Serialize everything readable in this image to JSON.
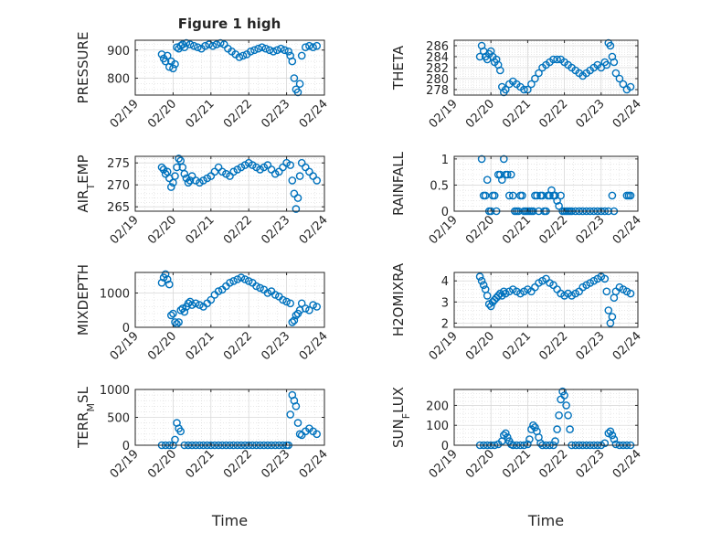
{
  "figure": {
    "title": "Figure 1 high",
    "marker_color": "#0072BD",
    "axis_color": "#262626",
    "grid_color": "#d9d9d9"
  },
  "chart_data": [
    {
      "type": "scatter",
      "title": "Figure 1 high",
      "xlabel": "",
      "ylabel": "PRESSURE",
      "xlim": [
        0,
        5
      ],
      "ylim": [
        740,
        935
      ],
      "grid": "on",
      "xticks": [
        0,
        1,
        2,
        3,
        4,
        5
      ],
      "xtick_labels": [
        "02/19",
        "02/20",
        "02/21",
        "02/22",
        "02/23",
        "02/24"
      ],
      "yticks": [
        800,
        900
      ],
      "ytick_labels": [
        "800",
        "900"
      ],
      "x": [
        0.7,
        0.75,
        0.8,
        0.85,
        0.9,
        0.95,
        1.0,
        1.05,
        1.1,
        1.15,
        1.2,
        1.25,
        1.3,
        1.35,
        1.45,
        1.55,
        1.65,
        1.75,
        1.85,
        1.95,
        2.05,
        2.15,
        2.25,
        2.35,
        2.45,
        2.55,
        2.65,
        2.75,
        2.85,
        2.95,
        3.05,
        3.15,
        3.25,
        3.35,
        3.45,
        3.55,
        3.65,
        3.75,
        3.85,
        3.95,
        4.05,
        4.1,
        4.15,
        4.2,
        4.25,
        4.3,
        4.35,
        4.4,
        4.5,
        4.6,
        4.7,
        4.8
      ],
      "y": [
        885,
        870,
        860,
        880,
        840,
        860,
        835,
        850,
        910,
        905,
        915,
        920,
        910,
        925,
        920,
        915,
        910,
        905,
        915,
        920,
        915,
        920,
        925,
        920,
        905,
        895,
        885,
        875,
        880,
        885,
        895,
        900,
        905,
        910,
        905,
        900,
        895,
        900,
        905,
        900,
        895,
        880,
        860,
        800,
        760,
        750,
        780,
        880,
        910,
        915,
        910,
        915
      ]
    },
    {
      "type": "scatter",
      "title": "",
      "xlabel": "",
      "ylabel": "THETA",
      "xlim": [
        0,
        5
      ],
      "ylim": [
        277,
        287
      ],
      "grid": "on",
      "xticks": [
        0,
        1,
        2,
        3,
        4,
        5
      ],
      "xtick_labels": [
        "02/19",
        "02/20",
        "02/21",
        "02/22",
        "02/23",
        "02/24"
      ],
      "yticks": [
        278,
        280,
        282,
        284,
        286
      ],
      "ytick_labels": [
        "278",
        "280",
        "282",
        "284",
        "286"
      ],
      "x": [
        0.7,
        0.75,
        0.8,
        0.85,
        0.9,
        0.95,
        1.0,
        1.05,
        1.1,
        1.15,
        1.2,
        1.25,
        1.3,
        1.35,
        1.4,
        1.5,
        1.6,
        1.7,
        1.8,
        1.9,
        2.0,
        2.1,
        2.2,
        2.3,
        2.4,
        2.5,
        2.6,
        2.7,
        2.8,
        2.9,
        3.0,
        3.1,
        3.2,
        3.3,
        3.4,
        3.5,
        3.6,
        3.7,
        3.8,
        3.9,
        4.0,
        4.1,
        4.15,
        4.2,
        4.25,
        4.3,
        4.35,
        4.4,
        4.5,
        4.6,
        4.7,
        4.8
      ],
      "y": [
        284,
        286,
        285,
        284,
        283.5,
        284.5,
        285,
        284,
        283,
        283.5,
        282.5,
        281.5,
        278.5,
        277.5,
        278,
        279,
        279.5,
        279,
        278.5,
        278,
        278,
        279,
        280,
        281,
        282,
        282.5,
        283,
        283.5,
        283.5,
        283.5,
        283,
        282.5,
        282,
        281.5,
        281,
        280.5,
        281,
        281.5,
        282,
        282.5,
        282,
        283,
        282.5,
        286.5,
        286,
        284,
        283,
        281,
        280,
        279,
        278,
        278.5
      ]
    },
    {
      "type": "scatter",
      "title": "",
      "xlabel": "",
      "ylabel": "AIR_TEMP",
      "xlim": [
        0,
        5
      ],
      "ylim": [
        264,
        276.5
      ],
      "grid": "on",
      "xticks": [
        0,
        1,
        2,
        3,
        4,
        5
      ],
      "xtick_labels": [
        "02/19",
        "02/20",
        "02/21",
        "02/22",
        "02/23",
        "02/24"
      ],
      "yticks": [
        265,
        270,
        275
      ],
      "ytick_labels": [
        "265",
        "270",
        "275"
      ],
      "x": [
        0.7,
        0.75,
        0.8,
        0.85,
        0.9,
        0.95,
        1.0,
        1.05,
        1.1,
        1.15,
        1.2,
        1.25,
        1.3,
        1.35,
        1.4,
        1.45,
        1.5,
        1.6,
        1.7,
        1.8,
        1.9,
        2.0,
        2.1,
        2.2,
        2.3,
        2.4,
        2.5,
        2.6,
        2.7,
        2.8,
        2.9,
        3.0,
        3.1,
        3.2,
        3.3,
        3.4,
        3.5,
        3.6,
        3.7,
        3.8,
        3.9,
        4.0,
        4.1,
        4.15,
        4.2,
        4.25,
        4.3,
        4.35,
        4.4,
        4.5,
        4.6,
        4.7,
        4.8
      ],
      "y": [
        274,
        273.5,
        272.5,
        273,
        271.5,
        269.5,
        270.5,
        272,
        274,
        276,
        275.5,
        274,
        272.5,
        271.5,
        270.5,
        271,
        272,
        271,
        270.5,
        271,
        271.5,
        272,
        273,
        274,
        273,
        272.5,
        272,
        273,
        273.5,
        274,
        274.5,
        275,
        274.5,
        274,
        273.5,
        274,
        274.5,
        273.5,
        272.5,
        273,
        274,
        275,
        274.5,
        271,
        268,
        264.5,
        267,
        272,
        275,
        274,
        273,
        272,
        271
      ]
    },
    {
      "type": "scatter",
      "title": "",
      "xlabel": "",
      "ylabel": "RAINFALL",
      "xlim": [
        0,
        5
      ],
      "ylim": [
        0,
        1.05
      ],
      "grid": "on",
      "xticks": [
        0,
        1,
        2,
        3,
        4,
        5
      ],
      "xtick_labels": [
        "02/19",
        "02/20",
        "02/21",
        "02/22",
        "02/23",
        "02/24"
      ],
      "yticks": [
        0,
        0.5,
        1
      ],
      "ytick_labels": [
        "0",
        "0.5",
        "1"
      ],
      "x": [
        0.75,
        0.8,
        0.85,
        0.9,
        0.95,
        1.0,
        1.05,
        1.1,
        1.15,
        1.2,
        1.25,
        1.3,
        1.35,
        1.4,
        1.45,
        1.5,
        1.55,
        1.6,
        1.65,
        1.7,
        1.75,
        1.8,
        1.85,
        1.9,
        1.95,
        2.0,
        2.05,
        2.1,
        2.15,
        2.2,
        2.25,
        2.3,
        2.35,
        2.4,
        2.45,
        2.5,
        2.55,
        2.6,
        2.65,
        2.7,
        2.75,
        2.8,
        2.85,
        2.9,
        2.95,
        3.0,
        3.05,
        3.1,
        3.15,
        3.2,
        3.3,
        3.4,
        3.5,
        3.6,
        3.7,
        3.8,
        3.9,
        4.0,
        4.1,
        4.2,
        4.3,
        4.35,
        4.7,
        4.75,
        4.8
      ],
      "y": [
        1,
        0.3,
        0.3,
        0.6,
        0,
        0,
        0.3,
        0.3,
        0,
        0.7,
        0.7,
        0.6,
        1,
        0.7,
        0.7,
        0.3,
        0.7,
        0.3,
        0,
        0,
        0,
        0.3,
        0.3,
        0,
        0,
        0,
        0,
        0,
        0,
        0.3,
        0.3,
        0,
        0.3,
        0.3,
        0,
        0,
        0.3,
        0.3,
        0.4,
        0.3,
        0.3,
        0.2,
        0.1,
        0.3,
        0,
        0,
        0,
        0,
        0,
        0,
        0,
        0,
        0,
        0,
        0,
        0,
        0,
        0,
        0,
        0,
        0.3,
        0,
        0.3,
        0.3,
        0.3
      ]
    },
    {
      "type": "scatter",
      "title": "",
      "xlabel": "",
      "ylabel": "MIXDEPTH",
      "xlim": [
        0,
        5
      ],
      "ylim": [
        0,
        1600
      ],
      "grid": "on",
      "xticks": [
        0,
        1,
        2,
        3,
        4,
        5
      ],
      "xtick_labels": [
        "02/19",
        "02/20",
        "02/21",
        "02/22",
        "02/23",
        "02/24"
      ],
      "yticks": [
        0,
        1000
      ],
      "ytick_labels": [
        "0",
        "1000"
      ],
      "x": [
        0.7,
        0.75,
        0.8,
        0.85,
        0.9,
        0.95,
        1.0,
        1.05,
        1.1,
        1.15,
        1.2,
        1.25,
        1.3,
        1.35,
        1.4,
        1.45,
        1.5,
        1.6,
        1.7,
        1.8,
        1.9,
        2.0,
        2.1,
        2.2,
        2.3,
        2.4,
        2.5,
        2.6,
        2.7,
        2.8,
        2.9,
        3.0,
        3.1,
        3.2,
        3.3,
        3.4,
        3.5,
        3.6,
        3.7,
        3.8,
        3.9,
        4.0,
        4.1,
        4.15,
        4.2,
        4.25,
        4.3,
        4.35,
        4.4,
        4.5,
        4.6,
        4.7,
        4.8
      ],
      "y": [
        1300,
        1450,
        1550,
        1400,
        1250,
        350,
        400,
        150,
        100,
        150,
        500,
        550,
        450,
        600,
        700,
        750,
        650,
        700,
        650,
        600,
        700,
        800,
        950,
        1050,
        1100,
        1200,
        1300,
        1350,
        1400,
        1450,
        1400,
        1350,
        1300,
        1200,
        1150,
        1100,
        1000,
        1050,
        950,
        900,
        800,
        750,
        700,
        150,
        200,
        350,
        400,
        500,
        700,
        550,
        500,
        650,
        600
      ]
    },
    {
      "type": "scatter",
      "title": "",
      "xlabel": "",
      "ylabel": "H2OMIXRA",
      "xlim": [
        0,
        5
      ],
      "ylim": [
        1.8,
        4.4
      ],
      "grid": "on",
      "xticks": [
        0,
        1,
        2,
        3,
        4,
        5
      ],
      "xtick_labels": [
        "02/19",
        "02/20",
        "02/21",
        "02/22",
        "02/23",
        "02/24"
      ],
      "yticks": [
        2,
        3,
        4
      ],
      "ytick_labels": [
        "2",
        "3",
        "4"
      ],
      "x": [
        0.7,
        0.75,
        0.8,
        0.85,
        0.9,
        0.95,
        1.0,
        1.05,
        1.1,
        1.15,
        1.2,
        1.25,
        1.3,
        1.35,
        1.4,
        1.5,
        1.6,
        1.7,
        1.8,
        1.9,
        2.0,
        2.1,
        2.2,
        2.3,
        2.4,
        2.5,
        2.6,
        2.7,
        2.8,
        2.9,
        3.0,
        3.1,
        3.2,
        3.3,
        3.4,
        3.5,
        3.6,
        3.7,
        3.8,
        3.9,
        4.0,
        4.1,
        4.15,
        4.2,
        4.25,
        4.3,
        4.35,
        4.4,
        4.5,
        4.6,
        4.7,
        4.8
      ],
      "y": [
        4.2,
        4.0,
        3.8,
        3.6,
        3.3,
        2.9,
        2.8,
        3.0,
        3.1,
        3.2,
        3.3,
        3.4,
        3.3,
        3.5,
        3.4,
        3.5,
        3.6,
        3.5,
        3.4,
        3.5,
        3.6,
        3.5,
        3.7,
        3.9,
        4.0,
        4.1,
        3.9,
        3.8,
        3.6,
        3.4,
        3.3,
        3.4,
        3.3,
        3.4,
        3.5,
        3.7,
        3.8,
        3.9,
        4.0,
        4.1,
        4.2,
        4.1,
        3.5,
        2.6,
        2.0,
        2.3,
        3.2,
        3.5,
        3.7,
        3.6,
        3.5,
        3.4
      ]
    },
    {
      "type": "scatter",
      "title": "",
      "xlabel": "Time",
      "ylabel": "TERR_MSL",
      "xlim": [
        0,
        5
      ],
      "ylim": [
        0,
        1000
      ],
      "grid": "on",
      "xticks": [
        0,
        1,
        2,
        3,
        4,
        5
      ],
      "xtick_labels": [
        "02/19",
        "02/20",
        "02/21",
        "02/22",
        "02/23",
        "02/24"
      ],
      "yticks": [
        0,
        500,
        1000
      ],
      "ytick_labels": [
        "0",
        "500",
        "1000"
      ],
      "x": [
        0.7,
        0.8,
        0.9,
        1.0,
        1.05,
        1.1,
        1.15,
        1.2,
        1.3,
        1.4,
        1.5,
        1.6,
        1.7,
        1.8,
        1.9,
        2.0,
        2.1,
        2.2,
        2.3,
        2.4,
        2.5,
        2.6,
        2.7,
        2.8,
        2.9,
        3.0,
        3.1,
        3.2,
        3.3,
        3.4,
        3.5,
        3.6,
        3.7,
        3.8,
        3.9,
        4.0,
        4.05,
        4.1,
        4.15,
        4.2,
        4.25,
        4.3,
        4.35,
        4.4,
        4.5,
        4.6,
        4.7,
        4.8
      ],
      "y": [
        0,
        0,
        0,
        0,
        100,
        400,
        300,
        250,
        0,
        0,
        0,
        0,
        0,
        0,
        0,
        0,
        0,
        0,
        0,
        0,
        0,
        0,
        0,
        0,
        0,
        0,
        0,
        0,
        0,
        0,
        0,
        0,
        0,
        0,
        0,
        0,
        0,
        550,
        900,
        800,
        700,
        400,
        200,
        180,
        250,
        300,
        250,
        200
      ]
    },
    {
      "type": "scatter",
      "title": "",
      "xlabel": "Time",
      "ylabel": "SUN_FLUX",
      "xlim": [
        0,
        5
      ],
      "ylim": [
        0,
        280
      ],
      "grid": "on",
      "xticks": [
        0,
        1,
        2,
        3,
        4,
        5
      ],
      "xtick_labels": [
        "02/19",
        "02/20",
        "02/21",
        "02/22",
        "02/23",
        "02/24"
      ],
      "yticks": [
        0,
        100,
        200
      ],
      "ytick_labels": [
        "0",
        "100",
        "200"
      ],
      "x": [
        0.7,
        0.8,
        0.9,
        1.0,
        1.1,
        1.2,
        1.3,
        1.35,
        1.4,
        1.45,
        1.5,
        1.55,
        1.6,
        1.7,
        1.8,
        1.9,
        2.0,
        2.05,
        2.1,
        2.15,
        2.2,
        2.25,
        2.3,
        2.35,
        2.4,
        2.5,
        2.6,
        2.7,
        2.75,
        2.8,
        2.85,
        2.9,
        2.95,
        3.0,
        3.05,
        3.1,
        3.15,
        3.2,
        3.3,
        3.4,
        3.5,
        3.6,
        3.7,
        3.8,
        3.9,
        4.0,
        4.1,
        4.2,
        4.25,
        4.3,
        4.35,
        4.4,
        4.5,
        4.6,
        4.7,
        4.8
      ],
      "y": [
        0,
        0,
        0,
        0,
        0,
        5,
        20,
        50,
        60,
        40,
        20,
        5,
        0,
        0,
        0,
        0,
        5,
        30,
        80,
        100,
        90,
        70,
        40,
        10,
        0,
        0,
        0,
        0,
        20,
        80,
        150,
        230,
        270,
        250,
        200,
        150,
        80,
        0,
        0,
        0,
        0,
        0,
        0,
        0,
        0,
        0,
        10,
        60,
        70,
        50,
        30,
        5,
        0,
        0,
        0,
        0
      ]
    }
  ]
}
